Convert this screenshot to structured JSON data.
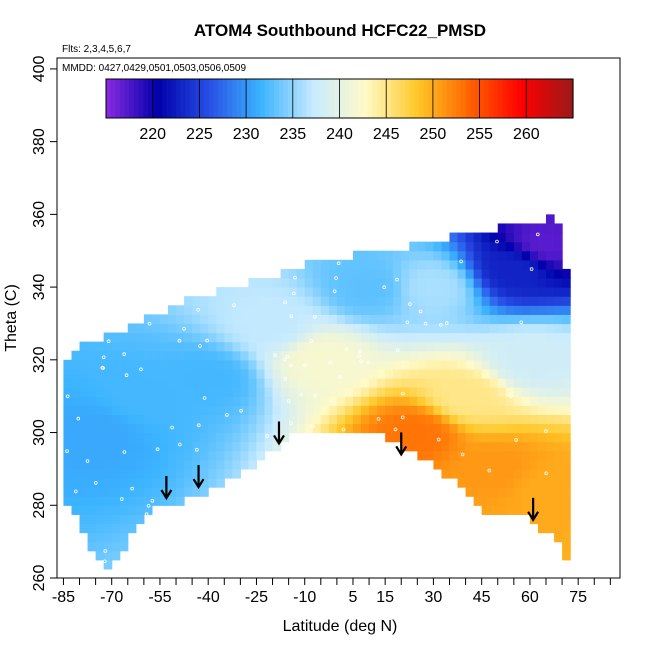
{
  "chart_data": {
    "type": "heatmap",
    "title": "ATOM4 Southbound HCFC22_PMSD",
    "flights_note": "Flts: 2,3,4,5,6,7",
    "dates_note": "MMDD: 0427,0429,0501,0503,0506,0509",
    "xlabel": "Latitude (deg N)",
    "ylabel": "Theta (C)",
    "xlim": [
      -87,
      88
    ],
    "ylim": [
      260,
      403
    ],
    "x_ticks": [
      -85,
      -70,
      -55,
      -40,
      -25,
      -10,
      5,
      15,
      30,
      45,
      60,
      75
    ],
    "y_ticks": [
      260,
      280,
      300,
      320,
      340,
      360,
      380,
      400
    ],
    "colorbar": {
      "min": 215,
      "max": 265,
      "ticks": [
        220,
        225,
        230,
        235,
        240,
        245,
        250,
        255,
        260
      ],
      "colors": [
        "#8a2be2",
        "#0000aa",
        "#2850e6",
        "#3cb4ff",
        "#c8ebff",
        "#fffac8",
        "#ffc828",
        "#ff6400",
        "#ff0000",
        "#9b1a1a"
      ]
    },
    "coverage": {
      "top_theta": [
        [
          -85,
          318
        ],
        [
          -80,
          323
        ],
        [
          -70,
          326
        ],
        [
          -60,
          330
        ],
        [
          -50,
          334
        ],
        [
          -40,
          337
        ],
        [
          -30,
          339
        ],
        [
          -20,
          342
        ],
        [
          -10,
          345
        ],
        [
          0,
          347
        ],
        [
          10,
          348
        ],
        [
          20,
          349
        ],
        [
          30,
          352
        ],
        [
          40,
          353
        ],
        [
          50,
          355
        ],
        [
          60,
          356
        ],
        [
          65,
          358
        ],
        [
          68,
          359
        ],
        [
          70,
          352
        ],
        [
          72,
          340
        ]
      ],
      "bottom_theta": [
        [
          -85,
          283
        ],
        [
          -80,
          275
        ],
        [
          -75,
          265
        ],
        [
          -70,
          262
        ],
        [
          -65,
          270
        ],
        [
          -60,
          277
        ],
        [
          -55,
          280
        ],
        [
          -48,
          281
        ],
        [
          -40,
          284
        ],
        [
          -30,
          288
        ],
        [
          -20,
          295
        ],
        [
          -12,
          300
        ],
        [
          -5,
          299
        ],
        [
          5,
          300
        ],
        [
          12,
          300
        ],
        [
          20,
          296
        ],
        [
          30,
          291
        ],
        [
          40,
          284
        ],
        [
          45,
          278
        ],
        [
          50,
          279
        ],
        [
          60,
          276
        ],
        [
          66,
          272
        ],
        [
          72,
          265
        ]
      ]
    },
    "value_field_samples": [
      {
        "lat": -75,
        "theta": 300,
        "value": 231
      },
      {
        "lat": -60,
        "theta": 310,
        "value": 232
      },
      {
        "lat": -40,
        "theta": 315,
        "value": 232
      },
      {
        "lat": -20,
        "theta": 330,
        "value": 237
      },
      {
        "lat": -5,
        "theta": 320,
        "value": 242
      },
      {
        "lat": 10,
        "theta": 340,
        "value": 233
      },
      {
        "lat": 30,
        "theta": 340,
        "value": 236
      },
      {
        "lat": 55,
        "theta": 345,
        "value": 223
      },
      {
        "lat": 65,
        "theta": 352,
        "value": 217
      },
      {
        "lat": 25,
        "theta": 300,
        "value": 253
      },
      {
        "lat": 50,
        "theta": 290,
        "value": 251
      },
      {
        "lat": 65,
        "theta": 285,
        "value": 250
      },
      {
        "lat": 40,
        "theta": 310,
        "value": 245
      },
      {
        "lat": 60,
        "theta": 320,
        "value": 238
      }
    ],
    "arrows": [
      {
        "lat": -53,
        "theta": 282
      },
      {
        "lat": -43,
        "theta": 285
      },
      {
        "lat": -18,
        "theta": 297
      },
      {
        "lat": 20,
        "theta": 294
      },
      {
        "lat": 61,
        "theta": 276
      }
    ]
  }
}
